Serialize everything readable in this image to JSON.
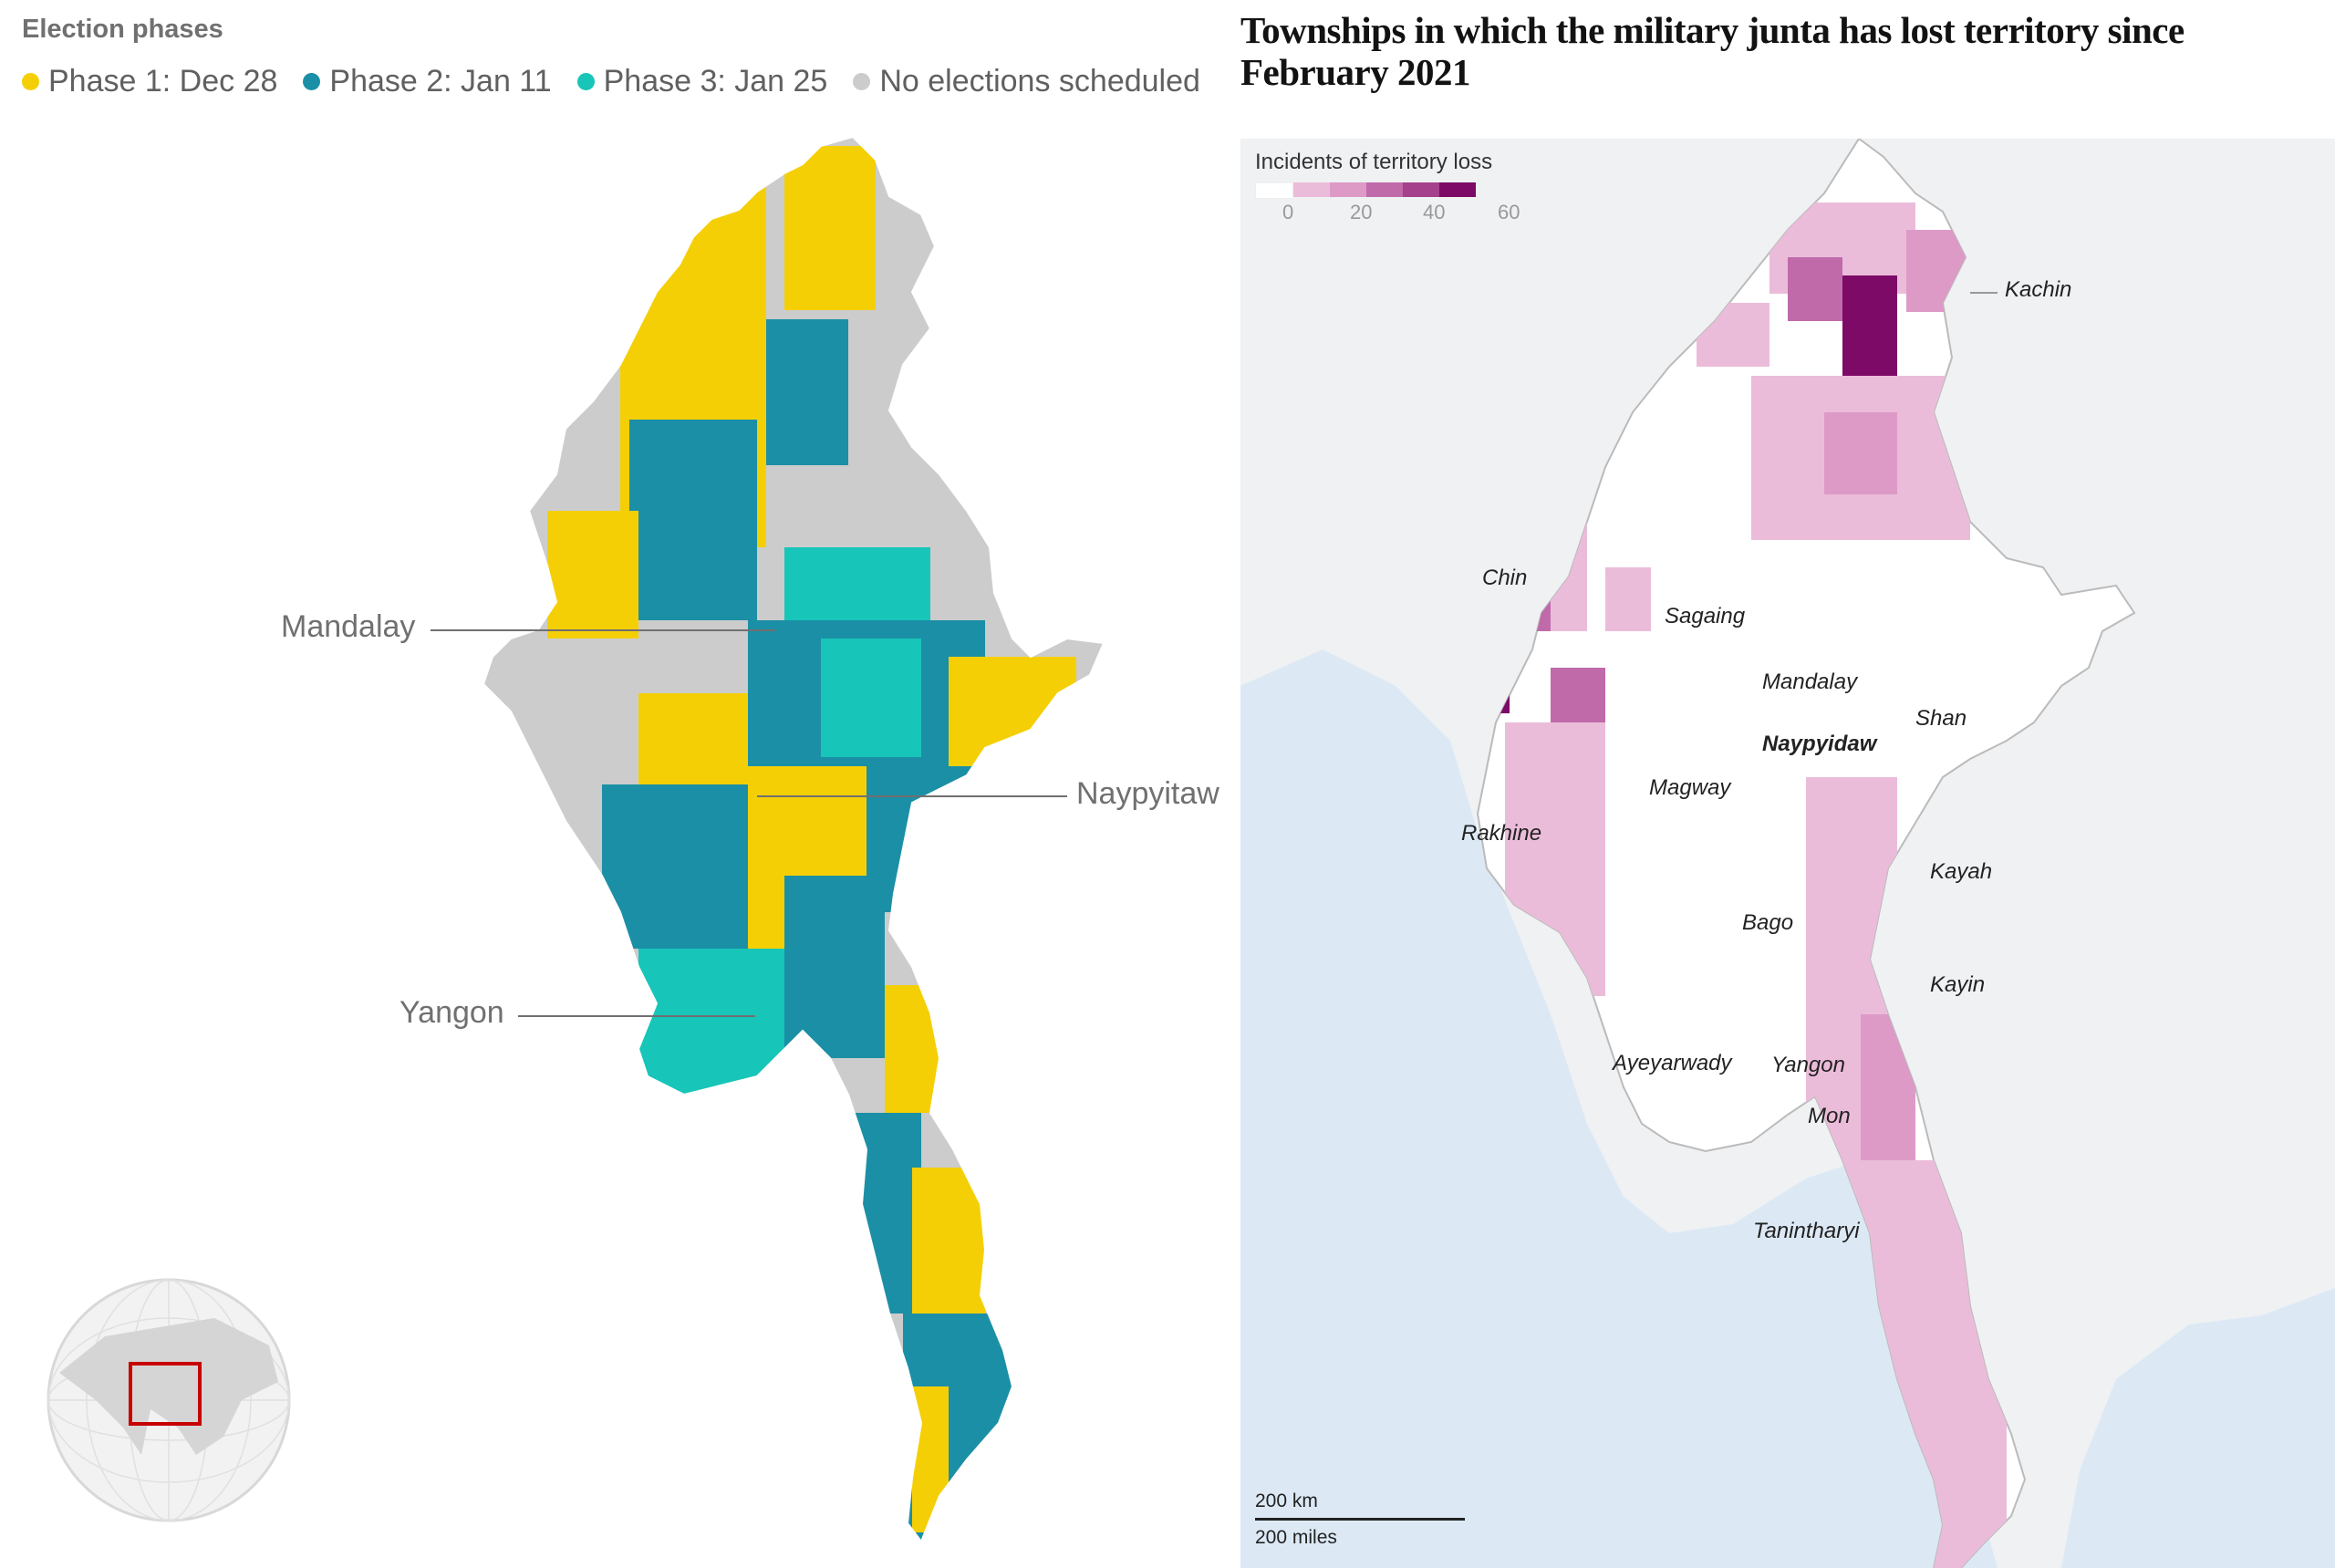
{
  "left": {
    "legend_title": "Election phases",
    "legend": [
      {
        "label": "Phase 1: Dec 28",
        "color": "#f5cf05"
      },
      {
        "label": "Phase 2: Jan 11",
        "color": "#1b8fa6"
      },
      {
        "label": "Phase 3: Jan 25",
        "color": "#17c5b9"
      },
      {
        "label": "No elections scheduled",
        "color": "#cccccc"
      }
    ],
    "cities": {
      "mandalay": "Mandalay",
      "naypyitaw": "Naypyitaw",
      "yangon": "Yangon"
    },
    "locator_icon": "globe-icon"
  },
  "right": {
    "title": "Townships in which the military junta has lost territory since February 2021",
    "scale_title": "Incidents of territory loss",
    "scale_colors": [
      "#ffffff",
      "#ebbcd9",
      "#dd9ac7",
      "#c06aaa",
      "#a4408c",
      "#7d0a67"
    ],
    "scale_ticks": [
      "0",
      "20",
      "40",
      "60"
    ],
    "regions": {
      "kachin": "Kachin",
      "chin": "Chin",
      "sagaing": "Sagaing",
      "mandalay": "Mandalay",
      "shan": "Shan",
      "naypyidaw": "Naypyidaw",
      "magway": "Magway",
      "rakhine": "Rakhine",
      "kayah": "Kayah",
      "bago": "Bago",
      "kayin": "Kayin",
      "ayeyarwady": "Ayeyarwady",
      "yangon": "Yangon",
      "mon": "Mon",
      "tanintharyi": "Tanintharyi"
    },
    "scalebar": {
      "km": "200 km",
      "miles": "200 miles"
    }
  }
}
